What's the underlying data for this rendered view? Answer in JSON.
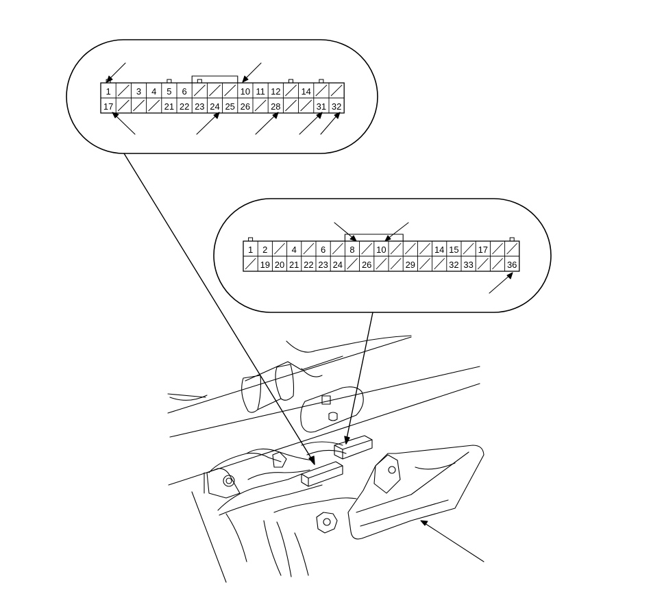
{
  "connector_a": {
    "row1": [
      "1",
      "",
      "3",
      "4",
      "5",
      "6",
      "",
      "",
      "",
      "10",
      "11",
      "12",
      "",
      "14",
      "",
      ""
    ],
    "row2": [
      "17",
      "",
      "",
      "",
      "21",
      "22",
      "23",
      "24",
      "25",
      "26",
      "",
      "28",
      "",
      "",
      "31",
      "32"
    ]
  },
  "connector_b": {
    "row1": [
      "1",
      "2",
      "",
      "4",
      "",
      "6",
      "",
      "8",
      "",
      "10",
      "",
      "",
      "",
      "14",
      "15",
      "",
      "17",
      "",
      ""
    ],
    "row2": [
      "",
      "19",
      "20",
      "21",
      "22",
      "23",
      "24",
      "",
      "26",
      "",
      "",
      "29",
      "",
      "",
      "32",
      "33",
      "",
      "",
      "36"
    ]
  }
}
